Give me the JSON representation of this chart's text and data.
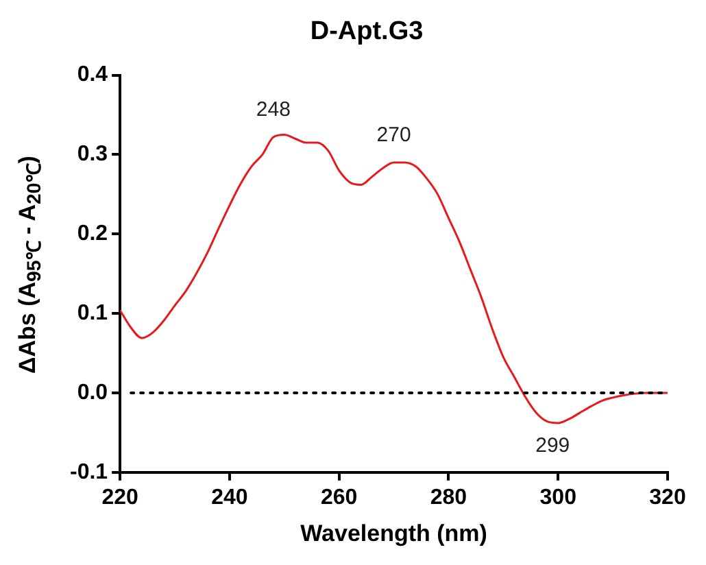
{
  "chart_data": {
    "type": "line",
    "title": "D-Apt.G3",
    "xlabel": "Wavelength (nm)",
    "ylabel": "ΔAbs (A$_{95℃}$ - A$_{20℃}$)",
    "x": [
      220,
      222,
      224,
      226,
      228,
      230,
      232,
      234,
      236,
      238,
      240,
      242,
      244,
      246,
      248,
      250,
      252,
      254,
      256,
      258,
      260,
      262,
      264,
      266,
      268,
      270,
      272,
      274,
      276,
      278,
      280,
      282,
      284,
      286,
      288,
      290,
      292,
      294,
      296,
      298,
      300,
      302,
      304,
      306,
      308,
      310,
      312,
      314,
      316,
      318,
      320
    ],
    "series": [
      {
        "color": "#e8191b",
        "values": [
          0.104,
          0.082,
          0.069,
          0.076,
          0.091,
          0.11,
          0.128,
          0.151,
          0.177,
          0.207,
          0.236,
          0.263,
          0.285,
          0.3,
          0.322,
          0.325,
          0.32,
          0.315,
          0.315,
          0.305,
          0.28,
          0.265,
          0.262,
          0.272,
          0.283,
          0.29,
          0.29,
          0.285,
          0.27,
          0.25,
          0.22,
          0.19,
          0.155,
          0.12,
          0.08,
          0.045,
          0.02,
          -0.005,
          -0.025,
          -0.036,
          -0.038,
          -0.033,
          -0.025,
          -0.017,
          -0.01,
          -0.006,
          -0.003,
          -0.001,
          0,
          0,
          0
        ]
      }
    ],
    "xlim": [
      220,
      320
    ],
    "xticks": [
      220,
      240,
      260,
      280,
      300,
      320
    ],
    "ylim": [
      -0.1,
      0.4
    ],
    "yticks": [
      -0.1,
      {
        "value": 0,
        "label": "0.0"
      },
      0.1,
      0.2,
      0.3,
      0.4
    ],
    "ref_lines": [
      {
        "axis": "y",
        "value": 0,
        "line_style": "dotted",
        "color": "#000000"
      }
    ],
    "annotations": [
      {
        "text": "248",
        "x": 248,
        "y": 0.322
      },
      {
        "text": "270",
        "x": 270,
        "y": 0.29
      },
      {
        "text": "299",
        "x": 299,
        "y": -0.037
      }
    ],
    "grid": false,
    "legend": false,
    "marker": "none",
    "line_style": "solid"
  }
}
